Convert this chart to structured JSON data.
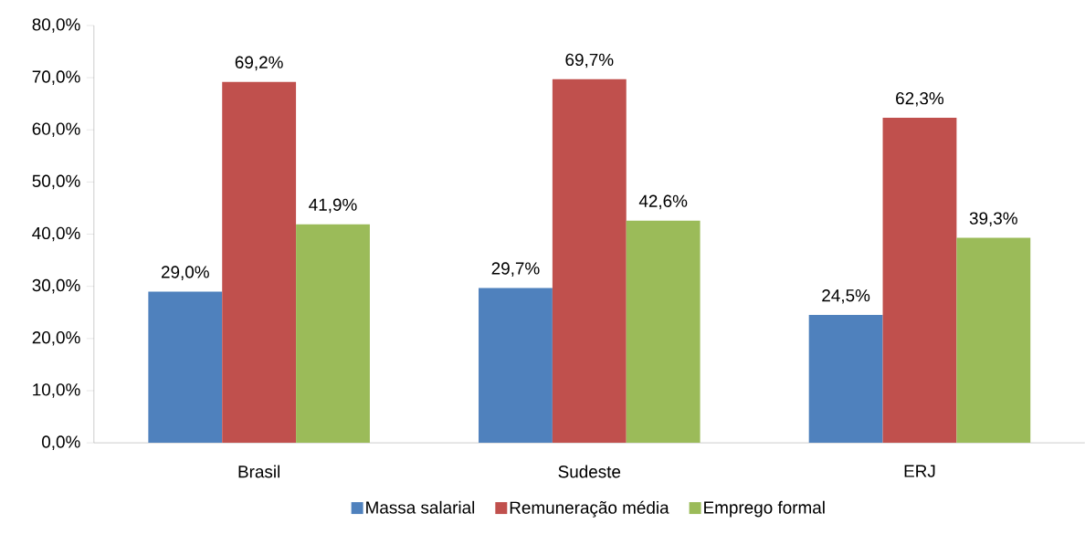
{
  "chart_data": {
    "type": "bar",
    "categories": [
      "Brasil",
      "Sudeste",
      "ERJ"
    ],
    "series": [
      {
        "name": "Massa salarial",
        "color": "#4f81bd",
        "values": [
          29.0,
          29.7,
          24.5
        ],
        "value_labels": [
          "29,0%",
          "29,7%",
          "24,5%"
        ]
      },
      {
        "name": "Remuneração média",
        "color": "#c0504d",
        "values": [
          69.2,
          69.7,
          62.3
        ],
        "value_labels": [
          "69,2%",
          "69,7%",
          "62,3%"
        ]
      },
      {
        "name": "Emprego formal",
        "color": "#9bbb59",
        "values": [
          41.9,
          42.6,
          39.3
        ],
        "value_labels": [
          "41,9%",
          "42,6%",
          "39,3%"
        ]
      }
    ],
    "ylim": [
      0,
      80
    ],
    "yticks": [
      {
        "value": 0,
        "label": "0,0%"
      },
      {
        "value": 10,
        "label": "10,0%"
      },
      {
        "value": 20,
        "label": "20,0%"
      },
      {
        "value": 30,
        "label": "30,0%"
      },
      {
        "value": 40,
        "label": "40,0%"
      },
      {
        "value": 50,
        "label": "50,0%"
      },
      {
        "value": 60,
        "label": "60,0%"
      },
      {
        "value": 70,
        "label": "70,0%"
      },
      {
        "value": 80,
        "label": "80,0%"
      }
    ],
    "grid": false,
    "legend": "bottom"
  }
}
